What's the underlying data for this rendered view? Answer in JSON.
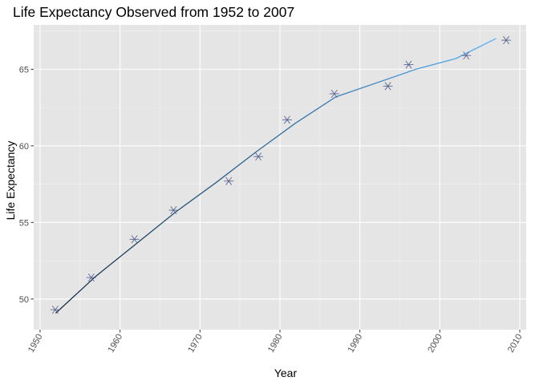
{
  "chart_data": {
    "type": "scatter",
    "title": "Life Expectancy Observed from 1952 to 2007",
    "xlabel": "Year",
    "ylabel": "Life Expectancy",
    "xlim": [
      1949.2,
      2010.8
    ],
    "ylim": [
      48.0,
      67.9
    ],
    "x_ticks": [
      1950,
      1960,
      1970,
      1980,
      1990,
      2000,
      2010
    ],
    "y_ticks": [
      50,
      55,
      60,
      65
    ],
    "grid": true,
    "legend": "none",
    "points": {
      "name": "",
      "marker": "asterisk",
      "color": "#4c5a8a",
      "x": [
        1951.9,
        1956.4,
        1961.8,
        1966.7,
        1973.6,
        1977.3,
        1980.9,
        1986.8,
        1993.5,
        1996.1,
        2003.3,
        2008.3
      ],
      "y": [
        49.3,
        51.4,
        53.9,
        55.8,
        57.7,
        59.3,
        61.7,
        63.4,
        63.9,
        65.3,
        65.9,
        66.9
      ]
    },
    "fit_line": {
      "name": "",
      "color_start": "#132b43",
      "color_end": "#56b1f7",
      "x": [
        1952,
        1957,
        1962,
        1967,
        1972,
        1977,
        1982,
        1987,
        1992,
        1997,
        2002,
        2007
      ],
      "y": [
        49.1,
        51.5,
        53.6,
        55.7,
        57.6,
        59.6,
        61.5,
        63.2,
        64.1,
        65.0,
        65.7,
        67.0
      ]
    },
    "colors": {
      "panel_background": "#e5e5e5",
      "grid_major": "#ffffff",
      "grid_minor": "#f2f2f2",
      "tick": "#333333"
    }
  }
}
